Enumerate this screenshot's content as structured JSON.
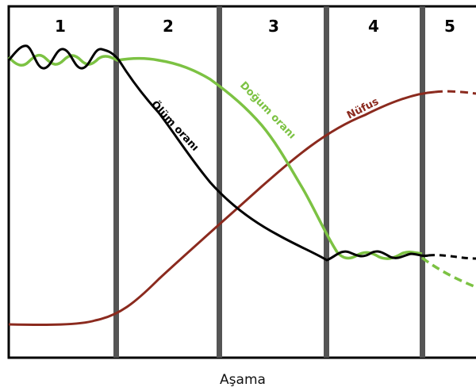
{
  "diagram": {
    "stages": [
      "1",
      "2",
      "3",
      "4",
      "5"
    ],
    "x_axis_label": "Aşama",
    "curves": [
      {
        "key": "birth",
        "label": "Doğum oranı",
        "color": "#7cc243"
      },
      {
        "key": "death",
        "label": "Ölüm oranı",
        "color": "#000000"
      },
      {
        "key": "population",
        "label": "Nüfus",
        "color": "#8b2a1e"
      }
    ],
    "colors": {
      "divider": "#555555",
      "frame": "#000000",
      "background": "#ffffff"
    }
  }
}
